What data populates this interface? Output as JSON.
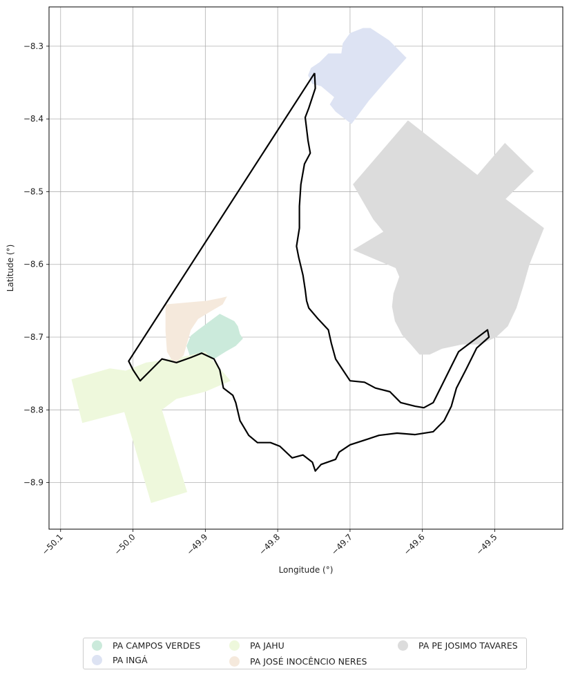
{
  "chart_data": {
    "type": "map",
    "xlabel": "Longitude (°)",
    "ylabel": "Latitude (°)",
    "xlim": [
      -50.116,
      -49.406
    ],
    "ylim": [
      -8.964,
      -8.246
    ],
    "xticks": [
      -50.1,
      -50.0,
      -49.9,
      -49.8,
      -49.7,
      -49.6,
      -49.5
    ],
    "xtick_labels": [
      "−50.1",
      "−50.0",
      "−49.9",
      "−49.8",
      "−49.7",
      "−49.6",
      "−49.5"
    ],
    "yticks": [
      -8.3,
      -8.4,
      -8.5,
      -8.6,
      -8.7,
      -8.8,
      -8.9
    ],
    "ytick_labels": [
      "−8.3",
      "−8.4",
      "−8.5",
      "−8.6",
      "−8.7",
      "−8.8",
      "−8.9"
    ],
    "grid": true,
    "legend_position": "bottom-center",
    "series": [
      {
        "name": "PA CAMPOS VERDES",
        "color": "#cbeadb",
        "points": [
          [
            -49.91,
            -8.69
          ],
          [
            -49.88,
            -8.668
          ],
          [
            -49.86,
            -8.678
          ],
          [
            -49.855,
            -8.685
          ],
          [
            -49.852,
            -8.696
          ],
          [
            -49.848,
            -8.702
          ],
          [
            -49.858,
            -8.712
          ],
          [
            -49.872,
            -8.72
          ],
          [
            -49.888,
            -8.73
          ],
          [
            -49.908,
            -8.734
          ],
          [
            -49.92,
            -8.73
          ],
          [
            -49.926,
            -8.712
          ],
          [
            -49.92,
            -8.698
          ]
        ]
      },
      {
        "name": "PA INGÁ",
        "color": "#dde3f3",
        "points": [
          [
            -49.752,
            -8.352
          ],
          [
            -49.758,
            -8.34
          ],
          [
            -49.754,
            -8.33
          ],
          [
            -49.742,
            -8.322
          ],
          [
            -49.73,
            -8.31
          ],
          [
            -49.712,
            -8.31
          ],
          [
            -49.71,
            -8.296
          ],
          [
            -49.7,
            -8.282
          ],
          [
            -49.682,
            -8.275
          ],
          [
            -49.672,
            -8.275
          ],
          [
            -49.646,
            -8.292
          ],
          [
            -49.622,
            -8.316
          ],
          [
            -49.648,
            -8.345
          ],
          [
            -49.674,
            -8.375
          ],
          [
            -49.698,
            -8.407
          ],
          [
            -49.72,
            -8.39
          ],
          [
            -49.728,
            -8.38
          ],
          [
            -49.722,
            -8.37
          ],
          [
            -49.74,
            -8.355
          ]
        ]
      },
      {
        "name": "PA JAHU",
        "color": "#eef8dc",
        "points": [
          [
            -50.085,
            -8.758
          ],
          [
            -50.032,
            -8.743
          ],
          [
            -50.01,
            -8.746
          ],
          [
            -49.982,
            -8.735
          ],
          [
            -49.935,
            -8.728
          ],
          [
            -49.9,
            -8.72
          ],
          [
            -49.865,
            -8.76
          ],
          [
            -49.9,
            -8.775
          ],
          [
            -49.94,
            -8.785
          ],
          [
            -49.96,
            -8.8
          ],
          [
            -49.925,
            -8.913
          ],
          [
            -49.975,
            -8.928
          ],
          [
            -50.0,
            -8.843
          ],
          [
            -50.012,
            -8.803
          ],
          [
            -50.07,
            -8.818
          ]
        ]
      },
      {
        "name": "PA JOSÉ INOCÊNCIO NERES",
        "color": "#f5e9dc",
        "points": [
          [
            -49.955,
            -8.655
          ],
          [
            -49.898,
            -8.65
          ],
          [
            -49.878,
            -8.646
          ],
          [
            -49.87,
            -8.644
          ],
          [
            -49.876,
            -8.655
          ],
          [
            -49.89,
            -8.663
          ],
          [
            -49.91,
            -8.675
          ],
          [
            -49.92,
            -8.69
          ],
          [
            -49.93,
            -8.725
          ],
          [
            -49.943,
            -8.737
          ],
          [
            -49.953,
            -8.72
          ],
          [
            -49.955,
            -8.692
          ]
        ]
      },
      {
        "name": "PA PE JOSIMO TAVARES",
        "color": "#dcdcdc",
        "points": [
          [
            -49.62,
            -8.402
          ],
          [
            -49.524,
            -8.477
          ],
          [
            -49.486,
            -8.433
          ],
          [
            -49.446,
            -8.472
          ],
          [
            -49.485,
            -8.51
          ],
          [
            -49.432,
            -8.55
          ],
          [
            -49.438,
            -8.565
          ],
          [
            -49.452,
            -8.6
          ],
          [
            -49.46,
            -8.628
          ],
          [
            -49.47,
            -8.66
          ],
          [
            -49.482,
            -8.685
          ],
          [
            -49.498,
            -8.7
          ],
          [
            -49.52,
            -8.71
          ],
          [
            -49.545,
            -8.71
          ],
          [
            -49.573,
            -8.716
          ],
          [
            -49.59,
            -8.724
          ],
          [
            -49.604,
            -8.724
          ],
          [
            -49.616,
            -8.71
          ],
          [
            -49.628,
            -8.697
          ],
          [
            -49.638,
            -8.678
          ],
          [
            -49.642,
            -8.658
          ],
          [
            -49.64,
            -8.64
          ],
          [
            -49.632,
            -8.617
          ],
          [
            -49.637,
            -8.605
          ],
          [
            -49.696,
            -8.58
          ],
          [
            -49.654,
            -8.555
          ],
          [
            -49.668,
            -8.538
          ],
          [
            -49.696,
            -8.49
          ]
        ]
      }
    ],
    "boundary": {
      "color": "#000000",
      "points": [
        [
          -49.749,
          -8.337
        ],
        [
          -49.748,
          -8.358
        ],
        [
          -49.757,
          -8.385
        ],
        [
          -49.762,
          -8.398
        ],
        [
          -49.758,
          -8.43
        ],
        [
          -49.755,
          -8.447
        ],
        [
          -49.763,
          -8.462
        ],
        [
          -49.768,
          -8.49
        ],
        [
          -49.77,
          -8.52
        ],
        [
          -49.77,
          -8.55
        ],
        [
          -49.774,
          -8.575
        ],
        [
          -49.771,
          -8.59
        ],
        [
          -49.765,
          -8.615
        ],
        [
          -49.762,
          -8.635
        ],
        [
          -49.76,
          -8.65
        ],
        [
          -49.757,
          -8.66
        ],
        [
          -49.745,
          -8.674
        ],
        [
          -49.73,
          -8.69
        ],
        [
          -49.726,
          -8.708
        ],
        [
          -49.72,
          -8.73
        ],
        [
          -49.71,
          -8.745
        ],
        [
          -49.7,
          -8.76
        ],
        [
          -49.68,
          -8.762
        ],
        [
          -49.665,
          -8.77
        ],
        [
          -49.645,
          -8.775
        ],
        [
          -49.63,
          -8.79
        ],
        [
          -49.61,
          -8.795
        ],
        [
          -49.598,
          -8.797
        ],
        [
          -49.585,
          -8.79
        ],
        [
          -49.575,
          -8.77
        ],
        [
          -49.56,
          -8.74
        ],
        [
          -49.55,
          -8.72
        ],
        [
          -49.53,
          -8.705
        ],
        [
          -49.51,
          -8.69
        ],
        [
          -49.508,
          -8.7
        ],
        [
          -49.525,
          -8.715
        ],
        [
          -49.54,
          -8.745
        ],
        [
          -49.553,
          -8.77
        ],
        [
          -49.56,
          -8.795
        ],
        [
          -49.57,
          -8.815
        ],
        [
          -49.585,
          -8.83
        ],
        [
          -49.61,
          -8.834
        ],
        [
          -49.635,
          -8.832
        ],
        [
          -49.66,
          -8.835
        ],
        [
          -49.675,
          -8.84
        ],
        [
          -49.7,
          -8.848
        ],
        [
          -49.715,
          -8.858
        ],
        [
          -49.72,
          -8.868
        ],
        [
          -49.74,
          -8.875
        ],
        [
          -49.748,
          -8.884
        ],
        [
          -49.752,
          -8.872
        ],
        [
          -49.765,
          -8.862
        ],
        [
          -49.78,
          -8.866
        ],
        [
          -49.797,
          -8.85
        ],
        [
          -49.81,
          -8.845
        ],
        [
          -49.828,
          -8.845
        ],
        [
          -49.84,
          -8.835
        ],
        [
          -49.852,
          -8.815
        ],
        [
          -49.858,
          -8.79
        ],
        [
          -49.862,
          -8.78
        ],
        [
          -49.875,
          -8.77
        ],
        [
          -49.88,
          -8.745
        ],
        [
          -49.888,
          -8.73
        ],
        [
          -49.905,
          -8.722
        ],
        [
          -49.92,
          -8.728
        ],
        [
          -49.94,
          -8.735
        ],
        [
          -49.96,
          -8.73
        ],
        [
          -49.975,
          -8.745
        ],
        [
          -49.99,
          -8.76
        ],
        [
          -50.0,
          -8.745
        ],
        [
          -50.006,
          -8.733
        ],
        [
          -49.749,
          -8.337
        ]
      ]
    }
  }
}
